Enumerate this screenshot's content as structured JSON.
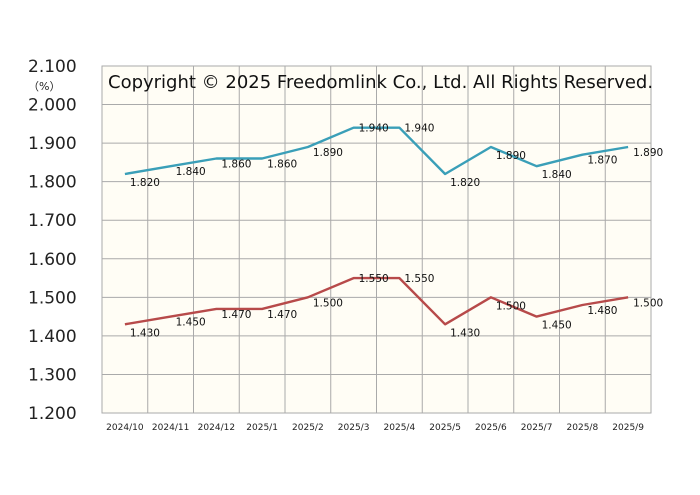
{
  "chart_data": {
    "type": "line",
    "unit_label": "（%）",
    "annotation": "Copyright © 2025 Freedomlink Co., Ltd. All Rights Reserved.",
    "categories": [
      "2024/10",
      "2024/11",
      "2024/12",
      "2025/1",
      "2025/2",
      "2025/3",
      "2025/4",
      "2025/5",
      "2025/6",
      "2025/7",
      "2025/8",
      "2025/9"
    ],
    "ylim": [
      1.2,
      2.1
    ],
    "yticks": [
      "1.200",
      "1.300",
      "1.400",
      "1.500",
      "1.600",
      "1.700",
      "1.800",
      "1.900",
      "2.000",
      "2.100"
    ],
    "grid": true,
    "series": [
      {
        "color": "#3a9fb8",
        "values": [
          1.82,
          1.84,
          1.86,
          1.86,
          1.89,
          1.94,
          1.94,
          1.82,
          1.89,
          1.84,
          1.87,
          1.89
        ],
        "labels": [
          "1.820",
          "1.840",
          "1.860",
          "1.860",
          "1.890",
          "1.940",
          "1.940",
          "1.820",
          "1.890",
          "1.840",
          "1.870",
          "1.890"
        ]
      },
      {
        "color": "#b74a4a",
        "values": [
          1.43,
          1.45,
          1.47,
          1.47,
          1.5,
          1.55,
          1.55,
          1.43,
          1.5,
          1.45,
          1.48,
          1.5
        ],
        "labels": [
          "1.430",
          "1.450",
          "1.470",
          "1.470",
          "1.500",
          "1.550",
          "1.550",
          "1.430",
          "1.500",
          "1.450",
          "1.480",
          "1.500"
        ]
      }
    ],
    "colors": {
      "plot_background": "#fffdf5",
      "grid": "#aaaaaa"
    }
  }
}
